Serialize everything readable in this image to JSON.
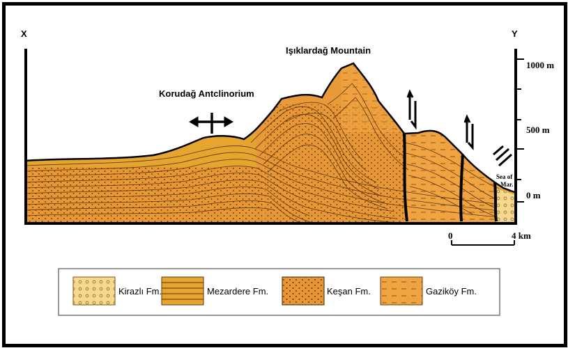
{
  "section": {
    "end_left": "X",
    "end_right": "Y",
    "mountain_label": "Işıklardağ Mountain",
    "anticline_label": "Korudağ Antclinorium",
    "sea_label_line1": "Sea of",
    "sea_label_line2": "Mar."
  },
  "elevation_scale": {
    "ticks": [
      "1000 m",
      "500 m",
      "0 m"
    ]
  },
  "distance_scale": {
    "start": "0",
    "end": "4 km"
  },
  "legend": {
    "items": [
      {
        "label": "Kirazlı Fm.",
        "pattern": "circles",
        "color": "#f6d88e"
      },
      {
        "label": "Mezardere Fm.",
        "pattern": "lines",
        "color": "#e6a52f"
      },
      {
        "label": "Keşan Fm.",
        "pattern": "dots",
        "color": "#e79635"
      },
      {
        "label": "Gaziköy Fm.",
        "pattern": "dashes",
        "color": "#f0a441"
      }
    ]
  },
  "colors": {
    "mezardere": "#e6a52f",
    "orange": "#e99a38",
    "kirazli": "#f6d88e",
    "ink": "#000000"
  }
}
